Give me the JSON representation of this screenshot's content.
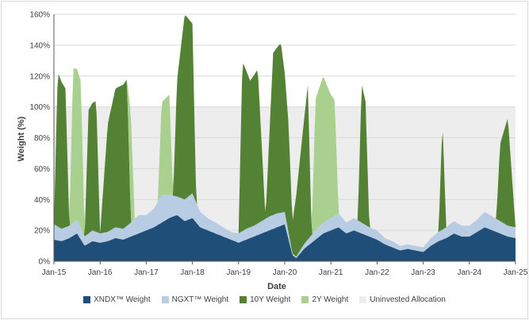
{
  "chart_data": {
    "type": "area",
    "title": "",
    "xlabel": "Date",
    "ylabel": "Weight (%)",
    "ylim": [
      0,
      160
    ],
    "yticks": [
      "0%",
      "20%",
      "40%",
      "60%",
      "80%",
      "100%",
      "120%",
      "140%",
      "160%"
    ],
    "xticks": [
      "Jan-15",
      "Jan-16",
      "Jan-17",
      "Jan-18",
      "Jan-19",
      "Jan-20",
      "Jan-21",
      "Jan-22",
      "Jan-23",
      "Jan-24",
      "Jan-25"
    ],
    "x_start": "2015-01",
    "x_end": "2025-01",
    "grid": true,
    "legend_position": "bottom",
    "shaded_band": {
      "name": "Uninvested Allocation",
      "from": 0,
      "to": 100,
      "color": "#ededed"
    },
    "series": [
      {
        "name": "XNDX™ Weight",
        "color": "#1f4e79",
        "x": [
          "2015-01",
          "2015-03",
          "2015-05",
          "2015-07",
          "2015-09",
          "2015-11",
          "2016-01",
          "2016-03",
          "2016-05",
          "2016-07",
          "2016-09",
          "2016-11",
          "2017-01",
          "2017-03",
          "2017-05",
          "2017-07",
          "2017-09",
          "2017-11",
          "2018-01",
          "2018-03",
          "2018-05",
          "2018-07",
          "2018-09",
          "2018-11",
          "2019-01",
          "2019-03",
          "2019-05",
          "2019-07",
          "2019-09",
          "2019-11",
          "2020-01",
          "2020-03",
          "2020-04",
          "2020-06",
          "2020-09",
          "2020-11",
          "2021-01",
          "2021-03",
          "2021-05",
          "2021-07",
          "2021-09",
          "2021-11",
          "2022-01",
          "2022-03",
          "2022-05",
          "2022-07",
          "2022-09",
          "2022-11",
          "2023-01",
          "2023-03",
          "2023-05",
          "2023-07",
          "2023-09",
          "2023-11",
          "2024-01",
          "2024-03",
          "2024-05",
          "2024-07",
          "2024-09",
          "2024-11",
          "2025-01"
        ],
        "values": [
          14,
          13,
          15,
          18,
          10,
          13,
          12,
          13,
          15,
          14,
          16,
          18,
          20,
          22,
          25,
          28,
          30,
          26,
          28,
          22,
          20,
          18,
          16,
          14,
          12,
          14,
          16,
          18,
          20,
          22,
          24,
          4,
          2,
          8,
          14,
          18,
          20,
          22,
          18,
          20,
          18,
          16,
          14,
          11,
          9,
          7,
          8,
          7,
          6,
          10,
          13,
          15,
          18,
          16,
          16,
          19,
          22,
          20,
          18,
          16,
          15
        ]
      },
      {
        "name": "NGXT™ Weight",
        "color": "#b8cce4",
        "x": [
          "2015-01",
          "2015-03",
          "2015-05",
          "2015-07",
          "2015-09",
          "2015-11",
          "2016-01",
          "2016-03",
          "2016-05",
          "2016-07",
          "2016-09",
          "2016-11",
          "2017-01",
          "2017-03",
          "2017-05",
          "2017-07",
          "2017-09",
          "2017-11",
          "2018-01",
          "2018-03",
          "2018-05",
          "2018-07",
          "2018-09",
          "2018-11",
          "2019-01",
          "2019-03",
          "2019-05",
          "2019-07",
          "2019-09",
          "2019-11",
          "2020-01",
          "2020-03",
          "2020-04",
          "2020-06",
          "2020-09",
          "2020-11",
          "2021-01",
          "2021-03",
          "2021-05",
          "2021-07",
          "2021-09",
          "2021-11",
          "2022-01",
          "2022-03",
          "2022-05",
          "2022-07",
          "2022-09",
          "2022-11",
          "2023-01",
          "2023-03",
          "2023-05",
          "2023-07",
          "2023-09",
          "2023-11",
          "2024-01",
          "2024-03",
          "2024-05",
          "2024-07",
          "2024-09",
          "2024-11",
          "2025-01"
        ],
        "values": [
          10,
          8,
          8,
          9,
          6,
          7,
          6,
          6,
          7,
          7,
          9,
          12,
          10,
          12,
          18,
          15,
          12,
          14,
          16,
          10,
          8,
          7,
          6,
          5,
          6,
          7,
          7,
          8,
          9,
          9,
          8,
          1,
          1,
          3,
          6,
          7,
          8,
          9,
          7,
          8,
          7,
          6,
          6,
          4,
          4,
          3,
          3,
          3,
          3,
          5,
          6,
          7,
          8,
          7,
          7,
          8,
          10,
          9,
          8,
          7,
          7
        ]
      },
      {
        "name": "10Y Weight",
        "color": "#548235",
        "x": [
          "2015-01",
          "2015-02",
          "2015-04",
          "2015-05",
          "2015-07",
          "2015-09",
          "2015-10",
          "2015-12",
          "2016-01",
          "2016-03",
          "2016-05",
          "2016-08",
          "2016-09",
          "2017-08",
          "2017-09",
          "2017-11",
          "2018-01",
          "2018-02",
          "2018-03",
          "2019-01",
          "2019-02",
          "2019-04",
          "2019-06",
          "2019-08",
          "2019-10",
          "2019-12",
          "2020-02",
          "2020-03",
          "2020-05",
          "2020-07",
          "2020-08",
          "2021-08",
          "2021-09",
          "2021-10",
          "2021-11",
          "2023-05",
          "2023-06",
          "2023-07",
          "2024-08",
          "2024-09",
          "2024-11",
          "2025-01"
        ],
        "values": [
          0,
          100,
          90,
          0,
          0,
          0,
          80,
          85,
          0,
          70,
          90,
          95,
          0,
          0,
          75,
          120,
          110,
          0,
          0,
          0,
          110,
          95,
          100,
          0,
          105,
          110,
          70,
          20,
          60,
          100,
          0,
          0,
          90,
          80,
          0,
          0,
          70,
          0,
          0,
          50,
          70,
          0
        ]
      },
      {
        "name": "2Y Weight",
        "color": "#a9d08e",
        "x": [
          "2015-01",
          "2015-05",
          "2015-06",
          "2015-08",
          "2015-09",
          "2016-08",
          "2016-09",
          "2016-10",
          "2017-04",
          "2017-05",
          "2017-07",
          "2017-08",
          "2019-01",
          "2020-08",
          "2020-09",
          "2020-11",
          "2021-01",
          "2021-02",
          "2021-03",
          "2025-01"
        ],
        "values": [
          0,
          0,
          100,
          95,
          0,
          0,
          70,
          0,
          0,
          60,
          65,
          0,
          0,
          0,
          85,
          95,
          80,
          75,
          0,
          0
        ]
      }
    ]
  },
  "legend": [
    {
      "label": "XNDX™ Weight",
      "color": "#1f4e79"
    },
    {
      "label": "NGXT™ Weight",
      "color": "#b8cce4"
    },
    {
      "label": "10Y Weight",
      "color": "#548235"
    },
    {
      "label": "2Y Weight",
      "color": "#a9d08e"
    },
    {
      "label": "Uninvested Allocation",
      "color": "#ededed"
    }
  ]
}
